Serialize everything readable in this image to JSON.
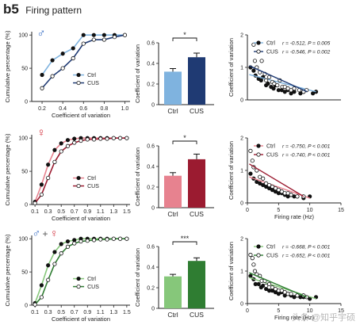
{
  "header": {
    "tag": "b5",
    "title": "Firing pattern"
  },
  "watermark": "头条 @知乎宇硕",
  "colors": {
    "male": {
      "ctrl": "#7fb3df",
      "cus": "#1f3a73",
      "symbol_color": "#3a6fc4",
      "symbol": "♂"
    },
    "female": {
      "ctrl": "#e7828f",
      "cus": "#9b1b30",
      "symbol_color": "#d32f3c",
      "symbol": "♀"
    },
    "both": {
      "ctrl": "#86c77a",
      "cus": "#2f7d32",
      "symbol": "♂ + ♀"
    }
  },
  "chart_data": [
    {
      "type": "line",
      "panel": "cdf",
      "row": "male",
      "ylabel": "Cumulative percentage (%)",
      "xlabel": "Coefficient of variation",
      "xlim": [
        0.1,
        1.05
      ],
      "ylim": [
        0,
        105
      ],
      "xticks": [
        "0.2",
        "0.4",
        "0.6",
        "0.8",
        "1.0"
      ],
      "xtick_values": [
        0.2,
        0.4,
        0.6,
        0.8,
        1.0
      ],
      "yticks": [
        "0",
        "50",
        "100"
      ],
      "ytick_values": [
        0,
        50,
        100
      ],
      "legend": [
        "Ctrl",
        "CUS"
      ],
      "series": [
        {
          "name": "Ctrl",
          "x": [
            0.2,
            0.3,
            0.4,
            0.5,
            0.6,
            0.7,
            0.8,
            0.9,
            1.0
          ],
          "y": [
            40,
            62,
            72,
            80,
            100,
            100,
            100,
            100,
            100
          ]
        },
        {
          "name": "CUS",
          "x": [
            0.2,
            0.3,
            0.4,
            0.5,
            0.6,
            0.7,
            0.8,
            0.9,
            1.0
          ],
          "y": [
            20,
            38,
            50,
            65,
            87,
            93,
            93,
            97,
            100
          ]
        }
      ]
    },
    {
      "type": "bar",
      "panel": "bar",
      "row": "male",
      "ylabel": "Coefficient of variation",
      "categories": [
        "Ctrl",
        "CUS"
      ],
      "values": [
        0.32,
        0.46
      ],
      "errors": [
        0.03,
        0.04
      ],
      "ylim": [
        0,
        0.6
      ],
      "yticks": [
        "0",
        "0.2",
        "0.4",
        "0.6"
      ],
      "ytick_values": [
        0,
        0.2,
        0.4,
        0.6
      ],
      "significance": "*"
    },
    {
      "type": "scatter",
      "panel": "scatter",
      "row": "male",
      "ylabel": "Coefficient of variation",
      "xlabel": "",
      "xlim": [
        0,
        15
      ],
      "ylim": [
        0,
        2
      ],
      "yticks": [
        "0",
        "1",
        "2"
      ],
      "ytick_values": [
        0,
        1,
        2
      ],
      "xticks": [],
      "xtick_values": [],
      "legend": [
        {
          "name": "Ctrl",
          "stats": "r = -0.512, P = 0.005"
        },
        {
          "name": "CUS",
          "stats": "r = -0.546, P = 0.002"
        }
      ],
      "series": [
        {
          "name": "Ctrl",
          "points": [
            [
              0.5,
              1.0
            ],
            [
              1,
              0.9
            ],
            [
              1.3,
              0.75
            ],
            [
              1.8,
              0.65
            ],
            [
              2.2,
              0.6
            ],
            [
              2.5,
              0.7
            ],
            [
              3,
              0.45
            ],
            [
              3.3,
              0.5
            ],
            [
              3.8,
              0.4
            ],
            [
              4.2,
              0.35
            ],
            [
              4.5,
              0.45
            ],
            [
              5,
              0.3
            ],
            [
              5.5,
              0.3
            ],
            [
              6,
              0.25
            ],
            [
              6.5,
              0.3
            ],
            [
              7,
              0.2
            ],
            [
              7.5,
              0.25
            ],
            [
              8.5,
              0.2
            ],
            [
              9,
              0.25
            ],
            [
              10.5,
              0.2
            ],
            [
              11,
              0.25
            ]
          ],
          "fit": [
            [
              0.3,
              0.78
            ],
            [
              11,
              0.25
            ]
          ]
        },
        {
          "name": "CUS",
          "points": [
            [
              1,
              1.7
            ],
            [
              1.2,
              1.2
            ],
            [
              1.5,
              1.0
            ],
            [
              2,
              0.85
            ],
            [
              2.3,
              1.2
            ],
            [
              2.8,
              0.8
            ],
            [
              3,
              0.6
            ],
            [
              3.5,
              0.7
            ],
            [
              4,
              0.55
            ],
            [
              4.3,
              0.5
            ],
            [
              4.8,
              0.45
            ],
            [
              5.2,
              0.6
            ],
            [
              5.6,
              0.4
            ],
            [
              6,
              0.4
            ],
            [
              6.5,
              0.35
            ],
            [
              7,
              0.3
            ],
            [
              7.5,
              0.35
            ],
            [
              8.3,
              0.3
            ],
            [
              9,
              0.25
            ],
            [
              9.5,
              0.3
            ]
          ],
          "fit": [
            [
              0.3,
              1.05
            ],
            [
              9.6,
              0.25
            ]
          ]
        }
      ]
    },
    {
      "type": "line",
      "panel": "cdf",
      "row": "female",
      "ylabel": "Cumulative percentage (%)",
      "xlabel": "Coefficient of variation",
      "xlim": [
        0.05,
        1.55
      ],
      "ylim": [
        0,
        105
      ],
      "xticks": [
        "0.1",
        "0.3",
        "0.5",
        "0.7",
        "0.9",
        "1.1",
        "1.3",
        "1.5"
      ],
      "xtick_values": [
        0.1,
        0.3,
        0.5,
        0.7,
        0.9,
        1.1,
        1.3,
        1.5
      ],
      "yticks": [
        "0",
        "50",
        "100"
      ],
      "ytick_values": [
        0,
        50,
        100
      ],
      "legend": [
        "Ctrl",
        "CUS"
      ],
      "series": [
        {
          "name": "Ctrl",
          "x": [
            0.1,
            0.2,
            0.3,
            0.4,
            0.5,
            0.6,
            0.7,
            0.8,
            0.9,
            1.0,
            1.1,
            1.2,
            1.3,
            1.4,
            1.5
          ],
          "y": [
            4,
            30,
            60,
            82,
            92,
            97,
            99,
            100,
            100,
            100,
            100,
            100,
            100,
            100,
            100
          ]
        },
        {
          "name": "CUS",
          "x": [
            0.1,
            0.2,
            0.3,
            0.4,
            0.5,
            0.6,
            0.7,
            0.8,
            0.9,
            1.0,
            1.1,
            1.2,
            1.3,
            1.4,
            1.5
          ],
          "y": [
            2,
            15,
            40,
            64,
            80,
            88,
            93,
            96,
            98,
            98,
            99,
            99,
            100,
            100,
            100
          ]
        }
      ]
    },
    {
      "type": "bar",
      "panel": "bar",
      "row": "female",
      "ylabel": "Coefficient of variation",
      "categories": [
        "Ctrl",
        "CUS"
      ],
      "values": [
        0.31,
        0.47
      ],
      "errors": [
        0.03,
        0.05
      ],
      "ylim": [
        0,
        0.6
      ],
      "yticks": [
        "0",
        "0.2",
        "0.4",
        "0.6"
      ],
      "ytick_values": [
        0,
        0.2,
        0.4,
        0.6
      ],
      "significance": "*"
    },
    {
      "type": "scatter",
      "panel": "scatter",
      "row": "female",
      "ylabel": "Coefficient of variation",
      "xlabel": "Firing rate (Hz)",
      "xlim": [
        0,
        15
      ],
      "ylim": [
        0,
        2
      ],
      "yticks": [
        "0",
        "1",
        "2"
      ],
      "ytick_values": [
        0,
        1,
        2
      ],
      "xticks": [
        "0",
        "5",
        "10",
        "15"
      ],
      "xtick_values": [
        0,
        5,
        10,
        15
      ],
      "legend": [
        {
          "name": "Ctrl",
          "stats": "r = -0.750, P < 0.001"
        },
        {
          "name": "CUS",
          "stats": "r = -0.740, P < 0.001"
        }
      ],
      "series": [
        {
          "name": "Ctrl",
          "points": [
            [
              0.5,
              0.9
            ],
            [
              1,
              0.75
            ],
            [
              1.5,
              0.65
            ],
            [
              2,
              0.6
            ],
            [
              2.5,
              0.55
            ],
            [
              3,
              0.5
            ],
            [
              3.5,
              0.45
            ],
            [
              4,
              0.4
            ],
            [
              4.5,
              0.35
            ],
            [
              5,
              0.3
            ],
            [
              5.5,
              0.3
            ],
            [
              6,
              0.25
            ],
            [
              6.5,
              0.2
            ],
            [
              7,
              0.25
            ],
            [
              7.5,
              0.2
            ],
            [
              8,
              0.2
            ],
            [
              9,
              0.15
            ],
            [
              10,
              0.2
            ]
          ],
          "fit": [
            [
              0.3,
              0.8
            ],
            [
              10,
              0.15
            ]
          ]
        },
        {
          "name": "CUS",
          "points": [
            [
              0.5,
              1.6
            ],
            [
              0.8,
              1.3
            ],
            [
              1,
              1.1
            ],
            [
              1.5,
              1.0
            ],
            [
              2,
              0.8
            ],
            [
              2.5,
              0.75
            ],
            [
              3,
              0.6
            ],
            [
              3.5,
              0.55
            ],
            [
              4,
              0.5
            ],
            [
              4.5,
              0.45
            ],
            [
              5,
              0.4
            ],
            [
              5.5,
              0.35
            ],
            [
              6,
              0.3
            ],
            [
              6.5,
              0.3
            ],
            [
              7,
              0.25
            ],
            [
              8,
              0.2
            ],
            [
              9,
              0.2
            ]
          ],
          "fit": [
            [
              0.3,
              1.2
            ],
            [
              9,
              0.2
            ]
          ]
        }
      ]
    },
    {
      "type": "line",
      "panel": "cdf",
      "row": "both",
      "ylabel": "Cumulative percentage (%)",
      "xlabel": "Coefficient of variation",
      "xlim": [
        0.05,
        1.55
      ],
      "ylim": [
        0,
        105
      ],
      "xticks": [
        "0.1",
        "0.3",
        "0.5",
        "0.7",
        "0.9",
        "1.1",
        "1.3",
        "1.5"
      ],
      "xtick_values": [
        0.1,
        0.3,
        0.5,
        0.7,
        0.9,
        1.1,
        1.3,
        1.5
      ],
      "yticks": [
        "0",
        "50",
        "100"
      ],
      "ytick_values": [
        0,
        50,
        100
      ],
      "legend": [
        "Ctrl",
        "CUS"
      ],
      "series": [
        {
          "name": "Ctrl",
          "x": [
            0.1,
            0.2,
            0.3,
            0.4,
            0.5,
            0.6,
            0.7,
            0.8,
            0.9,
            1.0,
            1.1,
            1.2,
            1.3,
            1.4,
            1.5
          ],
          "y": [
            3,
            30,
            60,
            80,
            92,
            96,
            98,
            100,
            100,
            100,
            100,
            100,
            100,
            100,
            100
          ]
        },
        {
          "name": "CUS",
          "x": [
            0.1,
            0.2,
            0.3,
            0.4,
            0.5,
            0.6,
            0.7,
            0.8,
            0.9,
            1.0,
            1.1,
            1.2,
            1.3,
            1.4,
            1.5
          ],
          "y": [
            1,
            12,
            38,
            62,
            78,
            88,
            93,
            96,
            97,
            98,
            99,
            99,
            100,
            100,
            100
          ]
        }
      ]
    },
    {
      "type": "bar",
      "panel": "bar",
      "row": "both",
      "ylabel": "Coefficient of variation",
      "categories": [
        "Ctrl",
        "CUS"
      ],
      "values": [
        0.31,
        0.46
      ],
      "errors": [
        0.02,
        0.03
      ],
      "ylim": [
        0,
        0.6
      ],
      "yticks": [
        "0",
        "0.2",
        "0.4",
        "0.6"
      ],
      "ytick_values": [
        0,
        0.2,
        0.4,
        0.6
      ],
      "significance": "***"
    },
    {
      "type": "scatter",
      "panel": "scatter",
      "row": "both",
      "ylabel": "Coefficient of variation",
      "xlabel": "Firing rate (Hz)",
      "xlim": [
        0,
        15
      ],
      "ylim": [
        0,
        2
      ],
      "yticks": [
        "0",
        "1",
        "2"
      ],
      "ytick_values": [
        0,
        1,
        2
      ],
      "xticks": [
        "0",
        "5",
        "10",
        "15"
      ],
      "xtick_values": [
        0,
        5,
        10,
        15
      ],
      "legend": [
        {
          "name": "Ctrl",
          "stats": "r = -0.668, P < 0.001"
        },
        {
          "name": "CUS",
          "stats": "r = -0.652, P < 0.001"
        }
      ],
      "series": [
        {
          "name": "Ctrl",
          "points": [
            [
              0.5,
              0.85
            ],
            [
              1,
              0.75
            ],
            [
              1.3,
              0.6
            ],
            [
              1.8,
              0.6
            ],
            [
              2.2,
              0.5
            ],
            [
              2.5,
              0.55
            ],
            [
              3,
              0.45
            ],
            [
              3.5,
              0.4
            ],
            [
              4,
              0.4
            ],
            [
              4.5,
              0.35
            ],
            [
              5,
              0.3
            ],
            [
              5.5,
              0.35
            ],
            [
              6,
              0.25
            ],
            [
              6.5,
              0.3
            ],
            [
              7,
              0.25
            ],
            [
              7.5,
              0.2
            ],
            [
              8,
              0.25
            ],
            [
              8.5,
              0.2
            ],
            [
              9,
              0.2
            ],
            [
              10,
              0.15
            ],
            [
              11,
              0.2
            ]
          ],
          "fit": [
            [
              0.3,
              0.8
            ],
            [
              11,
              0.15
            ]
          ]
        },
        {
          "name": "CUS",
          "points": [
            [
              0.5,
              1.5
            ],
            [
              0.8,
              1.4
            ],
            [
              1,
              1.2
            ],
            [
              1.2,
              1.0
            ],
            [
              1.5,
              0.9
            ],
            [
              2,
              0.85
            ],
            [
              2.3,
              0.7
            ],
            [
              2.8,
              0.7
            ],
            [
              3,
              0.55
            ],
            [
              3.5,
              0.6
            ],
            [
              4,
              0.5
            ],
            [
              4.5,
              0.45
            ],
            [
              5,
              0.4
            ],
            [
              5.5,
              0.4
            ],
            [
              6,
              0.35
            ],
            [
              6.5,
              0.3
            ],
            [
              7,
              0.3
            ],
            [
              8,
              0.25
            ],
            [
              9,
              0.25
            ],
            [
              9.5,
              0.2
            ]
          ],
          "fit": [
            [
              0.3,
              0.95
            ],
            [
              9.5,
              0.2
            ]
          ]
        }
      ]
    }
  ]
}
